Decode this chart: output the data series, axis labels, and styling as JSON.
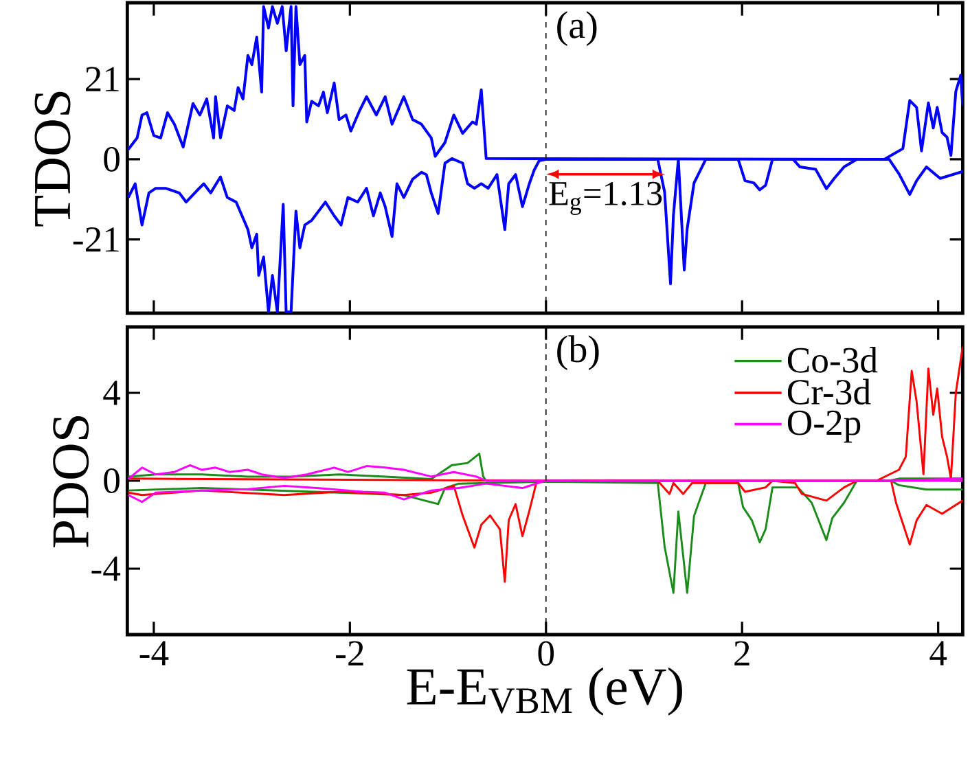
{
  "chart_data": [
    {
      "type": "line",
      "ylabel": "TDOS",
      "xlim": [
        -4.27,
        4.25
      ],
      "ylim": [
        -40.3,
        41
      ],
      "xticks": [
        -4,
        -2,
        0,
        2,
        4
      ],
      "yticks": [
        -21,
        0,
        21
      ],
      "tick_labels": "y",
      "annotations": [
        "(a)",
        "E$_{g}$=1.13"
      ],
      "ref_lines": [
        {
          "axis": "x",
          "value": 0,
          "color": "#000000",
          "line_style": "dashed"
        }
      ],
      "series": [
        {
          "color": "#0000ff",
          "x": [
            -4.26,
            -4.17,
            -4.12,
            -4.07,
            -4.0,
            -3.93,
            -3.86,
            -3.79,
            -3.7,
            -3.6,
            -3.53,
            -3.46,
            -3.39,
            -3.37,
            -3.32,
            -3.25,
            -3.18,
            -3.14,
            -3.09,
            -3.04,
            -3.0,
            -2.95,
            -2.9,
            -2.88,
            -2.83,
            -2.79,
            -2.74,
            -2.69,
            -2.65,
            -2.6,
            -2.58,
            -2.55,
            -2.51,
            -2.46,
            -2.44,
            -2.39,
            -2.32,
            -2.27,
            -2.23,
            -2.16,
            -2.11,
            -2.04,
            -1.99,
            -1.9,
            -1.83,
            -1.73,
            -1.64,
            -1.57,
            -1.45,
            -1.36,
            -1.27,
            -1.17,
            -1.13,
            -1.03,
            -0.94,
            -0.85,
            -0.75,
            -0.71,
            -0.66,
            -0.61,
            3.45,
            3.64,
            3.71,
            3.78,
            3.83,
            3.9,
            3.95,
            3.99,
            4.04,
            4.09,
            4.13,
            4.18,
            4.23,
            4.25
          ],
          "values": [
            2.6,
            5.6,
            11.6,
            12.2,
            6.2,
            5.6,
            12.2,
            9.2,
            3.2,
            14.6,
            11.6,
            15.8,
            5.6,
            16.4,
            5.6,
            14.0,
            12.8,
            18.8,
            15.8,
            27.2,
            24.8,
            32.0,
            17.6,
            40,
            34.4,
            40,
            35.6,
            40,
            28.4,
            40,
            14.0,
            40,
            24.8,
            27.2,
            9.8,
            15.2,
            14.0,
            17.6,
            12.2,
            20.0,
            10.4,
            11.6,
            7.4,
            12.8,
            16.4,
            11.6,
            16.4,
            9.2,
            16.4,
            10.4,
            9.2,
            5.6,
            0.8,
            4.4,
            11.6,
            6.8,
            9.8,
            9.2,
            18.2,
            0.2,
            0,
            2.8,
            15.4,
            13.6,
            2.2,
            14.8,
            8.2,
            13.6,
            7.0,
            5.8,
            1.0,
            17.8,
            22.0,
            14.2
          ]
        },
        {
          "color": "#0000ff",
          "x": [
            -4.26,
            -4.19,
            -4.12,
            -4.05,
            -3.98,
            -3.88,
            -3.74,
            -3.67,
            -3.56,
            -3.49,
            -3.42,
            -3.32,
            -3.25,
            -3.16,
            -3.04,
            -3.0,
            -2.95,
            -2.93,
            -2.88,
            -2.83,
            -2.79,
            -2.74,
            -2.68,
            -2.65,
            -2.6,
            -2.55,
            -2.51,
            -2.46,
            -2.39,
            -2.32,
            -2.25,
            -2.16,
            -2.09,
            -2.02,
            -1.92,
            -1.83,
            -1.76,
            -1.69,
            -1.64,
            -1.57,
            -1.52,
            -1.45,
            -1.36,
            -1.27,
            -1.22,
            -1.17,
            -1.1,
            -1.03,
            -0.96,
            -0.85,
            -0.8,
            -0.73,
            -0.66,
            -0.59,
            -0.5,
            -0.42,
            -0.38,
            -0.31,
            -0.24,
            -0.17,
            -0.12,
            -0.07,
            0.0,
            1.14,
            1.21,
            1.27,
            1.3,
            1.35,
            1.41,
            1.44,
            1.51,
            1.63,
            1.96,
            2.03,
            2.12,
            2.18,
            2.24,
            2.31,
            2.52,
            2.59,
            2.75,
            2.86,
            2.94,
            3.04,
            3.17,
            3.5,
            3.6,
            3.71,
            3.78,
            3.88,
            4.02,
            4.25
          ],
          "values": [
            -10.0,
            -6.4,
            -17.2,
            -8.8,
            -7.6,
            -7.6,
            -8.8,
            -11.2,
            -8.2,
            -6.4,
            -8.8,
            -4.6,
            -10.0,
            -11.2,
            -18.4,
            -23.2,
            -19.6,
            -30.4,
            -25.6,
            -40,
            -30.4,
            -40,
            -11.8,
            -40,
            -40,
            -13.6,
            -23.2,
            -17.2,
            -16.0,
            -13.6,
            -11.2,
            -14.8,
            -17.2,
            -10.0,
            -11.2,
            -7.6,
            -14.8,
            -8.8,
            -12.4,
            -20.2,
            -6.4,
            -10.0,
            -5.2,
            -3.4,
            -4.0,
            -8.8,
            -14.2,
            -1.0,
            0.2,
            -1.0,
            -6.4,
            -7.6,
            -6.4,
            -7.6,
            -4.0,
            -18.4,
            -6.4,
            -4.0,
            -12.4,
            -6.4,
            -2.8,
            -0.4,
            0,
            0,
            -8.6,
            -32.6,
            -14.6,
            0,
            -29.0,
            -18.2,
            -6.2,
            0,
            0,
            -5.6,
            -6.2,
            -8.0,
            -6.8,
            0,
            0,
            -2.0,
            -2.6,
            -7.7,
            -5.0,
            -2.0,
            0,
            0,
            -3.8,
            -9.2,
            -5.6,
            -2.0,
            -5.0,
            -3.2
          ]
        }
      ]
    },
    {
      "type": "line",
      "xlabel": "E-E$_{VBM}$ (eV)",
      "ylabel": "PDOS",
      "xlim": [
        -4.27,
        4.25
      ],
      "ylim": [
        -7,
        7
      ],
      "xticks": [
        -4,
        -2,
        0,
        2,
        4
      ],
      "yticks": [
        -4,
        0,
        4
      ],
      "legend": "top right",
      "annotations": [
        "(b)"
      ],
      "ref_lines": [
        {
          "axis": "x",
          "value": 0,
          "color": "#000000",
          "line_style": "dashed"
        }
      ],
      "series": [
        {
          "color": "#1a8c1a",
          "x": [
            -4.26,
            -3.51,
            -2.67,
            -2.11,
            -1.45,
            -1.1,
            -1.03,
            -0.89,
            -0.01,
            1.14,
            1.21,
            1.27,
            1.3,
            1.35,
            1.4,
            1.44,
            1.51,
            1.63,
            1.96,
            2.01,
            2.1,
            2.18,
            2.24,
            2.31,
            2.57,
            2.71,
            2.86,
            2.92,
            3.04,
            3.17,
            3.52,
            3.6,
            3.88,
            4.25
          ],
          "values": [
            -0.44,
            -0.33,
            null,
            -0.54,
            -0.65,
            -1.06,
            -0.33,
            -0.13,
            -0.04,
            -0.1,
            -3.0,
            null,
            -5.1,
            -1.4,
            null,
            -5.1,
            -1.6,
            -0.1,
            -0.1,
            -1.2,
            -1.8,
            -2.8,
            -2.2,
            -0.3,
            -0.3,
            -1.0,
            -2.7,
            -1.7,
            -1.0,
            0,
            0,
            -0.2,
            -0.4,
            -0.4
          ]
        },
        {
          "color": "#ff0000",
          "x": [
            -4.26,
            -4.12,
            -3.51,
            -2.67,
            -2.11,
            -1.45,
            -1.17,
            -0.94,
            -0.85,
            -0.73,
            -0.66,
            -0.57,
            -0.47,
            -0.42,
            -0.38,
            -0.31,
            -0.24,
            -0.17,
            -0.1,
            -0.01,
            1.14,
            1.26,
            1.3,
            1.4,
            1.49,
            1.96,
            2.03,
            2.24,
            2.31,
            2.54,
            2.61,
            2.86,
            3.04,
            3.17,
            3.52,
            3.57,
            3.71,
            3.78,
            3.88,
            4.04,
            4.25
          ],
          "values": [
            -0.54,
            -0.65,
            -0.44,
            -0.65,
            -0.5,
            -0.65,
            -0.54,
            -0.23,
            -1.58,
            -3.04,
            -2.0,
            -1.58,
            -2.21,
            -4.6,
            -1.79,
            -1.06,
            -2.52,
            -1.37,
            -0.12,
            0,
            0,
            -0.6,
            -0.1,
            -0.6,
            -0.1,
            -0.1,
            -0.5,
            -0.3,
            0,
            -0.1,
            -0.6,
            -0.9,
            -0.3,
            0,
            0,
            -1.0,
            -2.9,
            -1.8,
            -1.1,
            -1.5,
            -0.9
          ]
        },
        {
          "color": "#ff00ff",
          "x": [
            -4.26,
            -4.12,
            -3.98,
            -3.51,
            -3.04,
            -2.67,
            -2.34,
            -1.87,
            -1.64,
            -1.45,
            -1.17,
            -0.89,
            -0.61,
            -0.24,
            -0.01,
            4.25
          ],
          "values": [
            -0.65,
            -0.96,
            -0.54,
            -0.44,
            -0.38,
            -0.23,
            -0.33,
            -0.5,
            -0.54,
            -0.85,
            -0.44,
            -0.33,
            -0.13,
            -0.33,
            0,
            0
          ]
        },
        {
          "name": "Co-3d",
          "color": "#1a8c1a",
          "x": [
            -4.26,
            -3.98,
            -3.51,
            -3.04,
            -2.58,
            -2.11,
            -1.64,
            -1.17,
            -0.96,
            -0.8,
            -0.68,
            -0.64,
            -0.61,
            3.5,
            3.6,
            4.25
          ],
          "values": [
            0.19,
            0.29,
            0.29,
            0.19,
            0.19,
            0.29,
            0.19,
            0.08,
            0.71,
            0.81,
            1.23,
            0.19,
            0,
            0,
            0.1,
            0.1
          ]
        },
        {
          "name": "Cr-3d",
          "color": "#ff0000",
          "x": [
            -4.26,
            -0.01,
            3.37,
            3.6,
            3.67,
            3.73,
            3.78,
            3.85,
            3.9,
            3.95,
            3.99,
            4.04,
            4.09,
            4.13,
            4.18,
            4.21,
            4.25
          ],
          "values": [
            0.1,
            0,
            0,
            0.5,
            1.1,
            5.0,
            3.6,
            0.3,
            5.1,
            3.0,
            4.2,
            2.0,
            1.1,
            0.1,
            4.0,
            null,
            6.1
          ]
        },
        {
          "name": "O-2p",
          "color": "#ff00ff",
          "x": [
            -4.26,
            -4.12,
            -3.98,
            -3.79,
            -3.63,
            -3.51,
            -3.37,
            -3.23,
            -3.04,
            -2.9,
            -2.67,
            -2.44,
            -2.16,
            -2.02,
            -1.83,
            -1.64,
            -1.45,
            -1.17,
            -0.94,
            -0.71,
            -0.61,
            3.5,
            4.25
          ],
          "values": [
            0.08,
            0.6,
            0.29,
            0.4,
            0.71,
            0.5,
            0.6,
            0.4,
            0.5,
            0.29,
            0.13,
            0.29,
            0.6,
            0.4,
            0.67,
            0.6,
            0.5,
            0.19,
            0.4,
            0.19,
            0,
            0,
            0.1
          ]
        }
      ]
    }
  ]
}
